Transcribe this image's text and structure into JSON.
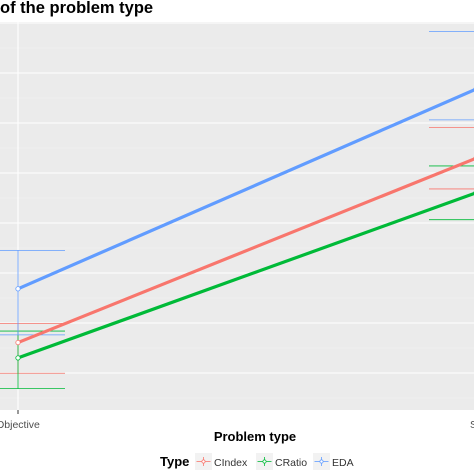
{
  "title": "of the problem type",
  "chart_data": {
    "type": "line",
    "xlabel": "Problem type",
    "ylabel": "",
    "categories": [
      "Objective",
      "S"
    ],
    "grid": true,
    "legend": {
      "title": "Type",
      "placement": "bottom",
      "entries": [
        "CIndex",
        "CRatio",
        "EDA"
      ]
    },
    "ylim": [
      0,
      1
    ],
    "series": [
      {
        "name": "CIndex",
        "color": "#F8766D",
        "values": [
          0.16,
          0.64
        ],
        "error_low": [
          0.08,
          0.56
        ],
        "error_high": [
          0.21,
          0.72
        ]
      },
      {
        "name": "CRatio",
        "color": "#00BA38",
        "values": [
          0.12,
          0.55
        ],
        "error_low": [
          0.04,
          0.48
        ],
        "error_high": [
          0.19,
          0.62
        ]
      },
      {
        "name": "EDA",
        "color": "#619CFF",
        "values": [
          0.3,
          0.82
        ],
        "error_low": [
          0.18,
          0.74
        ],
        "error_high": [
          0.4,
          0.97
        ]
      }
    ]
  }
}
